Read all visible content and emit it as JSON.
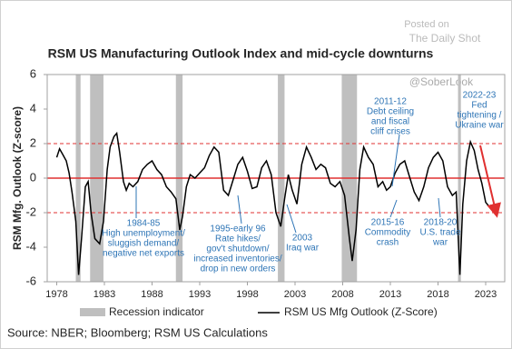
{
  "chart_data": {
    "type": "line",
    "title": "RSM US Manufacturing Outlook Index and mid-cycle downturns",
    "y_label": "RSM Mfg. Outlook (Z-score)",
    "source": "Source: NBER; Bloomberg; RSM US Calculations",
    "watermark": [
      "Posted on",
      "The Daily Shot",
      "@SoberLook"
    ],
    "xlim": [
      1977,
      2025
    ],
    "xticks": [
      1978,
      1983,
      1988,
      1993,
      1998,
      2003,
      2008,
      2013,
      2018,
      2023
    ],
    "ylim": [
      -6,
      6
    ],
    "yticks": [
      -6,
      -4,
      -2,
      0,
      2,
      4,
      6
    ],
    "reference_lines": [
      2,
      0,
      -2
    ],
    "reference_color": "#e03030",
    "recession_name": "Recession indicator",
    "recession_color": "#bfbfbf",
    "recessions": [
      [
        1980.0,
        1980.5
      ],
      [
        1981.5,
        1982.9
      ],
      [
        1990.5,
        1991.2
      ],
      [
        2001.2,
        2001.9
      ],
      [
        2007.9,
        2009.5
      ],
      [
        2020.1,
        2020.4
      ]
    ],
    "series": [
      {
        "name": "RSM US Mfg Outlook (Z-Score)",
        "color": "#000000",
        "x": [
          1978,
          1978.3,
          1978.6,
          1979,
          1979.3,
          1979.6,
          1980,
          1980.3,
          1980.6,
          1981,
          1981.3,
          1981.6,
          1982,
          1982.5,
          1982.9,
          1983.3,
          1983.6,
          1984,
          1984.3,
          1984.6,
          1985,
          1985.3,
          1985.6,
          1986,
          1986.5,
          1987,
          1987.5,
          1988,
          1988.5,
          1989,
          1989.5,
          1990,
          1990.5,
          1990.9,
          1991.2,
          1991.6,
          1992,
          1992.5,
          1993,
          1993.5,
          1994,
          1994.5,
          1995,
          1995.5,
          1996,
          1996.5,
          1997,
          1997.5,
          1998,
          1998.5,
          1999,
          1999.5,
          2000,
          2000.5,
          2001,
          2001.5,
          2001.9,
          2002.3,
          2002.7,
          2003.2,
          2003.7,
          2004.2,
          2004.7,
          2005.2,
          2005.7,
          2006.2,
          2006.7,
          2007.2,
          2007.7,
          2008.2,
          2008.7,
          2009.0,
          2009.4,
          2009.8,
          2010.2,
          2010.7,
          2011.2,
          2011.7,
          2012.2,
          2012.6,
          2013,
          2013.5,
          2014,
          2014.5,
          2015,
          2015.5,
          2016,
          2016.5,
          2017,
          2017.5,
          2018,
          2018.5,
          2019,
          2019.5,
          2019.9,
          2020.3,
          2020.6,
          2021,
          2021.4,
          2021.8,
          2022.2,
          2022.6,
          2023,
          2023.3
        ],
        "values": [
          1.2,
          1.7,
          1.4,
          1.0,
          0.3,
          -0.8,
          -2.5,
          -5.6,
          -3.5,
          -0.5,
          -0.2,
          -2,
          -3.5,
          -3.8,
          -2.5,
          0.5,
          1.8,
          2.4,
          2.6,
          1.5,
          -0.2,
          -0.7,
          -0.3,
          -0.5,
          -0.2,
          0.5,
          0.8,
          1.0,
          0.5,
          0.2,
          -0.5,
          -0.8,
          -1.2,
          -3,
          -2.2,
          -0.5,
          0.2,
          0.0,
          0.3,
          0.6,
          1.3,
          1.8,
          1.5,
          -0.7,
          -1.0,
          -0.1,
          0.8,
          1.2,
          0.4,
          -0.6,
          -0.5,
          0.6,
          1.0,
          0.2,
          -2,
          -2.8,
          -1.2,
          0.2,
          -0.7,
          -1.5,
          0.8,
          1.8,
          1.2,
          0.5,
          0.8,
          0.6,
          -0.3,
          -0.5,
          -0.2,
          -1,
          -3.5,
          -4.8,
          -3,
          0.5,
          1.8,
          1.2,
          0.8,
          -0.5,
          -0.2,
          -0.7,
          -0.5,
          0.3,
          0.8,
          1.0,
          0.1,
          -0.8,
          -1.3,
          -0.5,
          0.6,
          1.2,
          1.5,
          1.0,
          -0.5,
          -1.0,
          -0.8,
          -5.6,
          -1.5,
          1.0,
          2.1,
          1.6,
          0.5,
          -0.3,
          -1.4,
          -1.6
        ]
      }
    ],
    "annotations": [
      [
        "1984-85",
        "High unemployment/",
        "sluggish demand/",
        "negative net exports"
      ],
      [
        "1995-early 96",
        "Rate hikes/",
        "gov't shutdown/",
        "increased inventories/",
        "drop in new orders"
      ],
      [
        "2003",
        "Iraq war"
      ],
      [
        "2011-12",
        "Debt ceiling",
        "and fiscal",
        "cliff crises"
      ],
      [
        "2015-16",
        "Commodity",
        "crash"
      ],
      [
        "2018-20",
        "U.S. trade",
        "war"
      ],
      [
        "2022-23",
        "Fed",
        "tightening /",
        "Ukraine war"
      ]
    ],
    "annotation_color": "#2e75b6"
  }
}
